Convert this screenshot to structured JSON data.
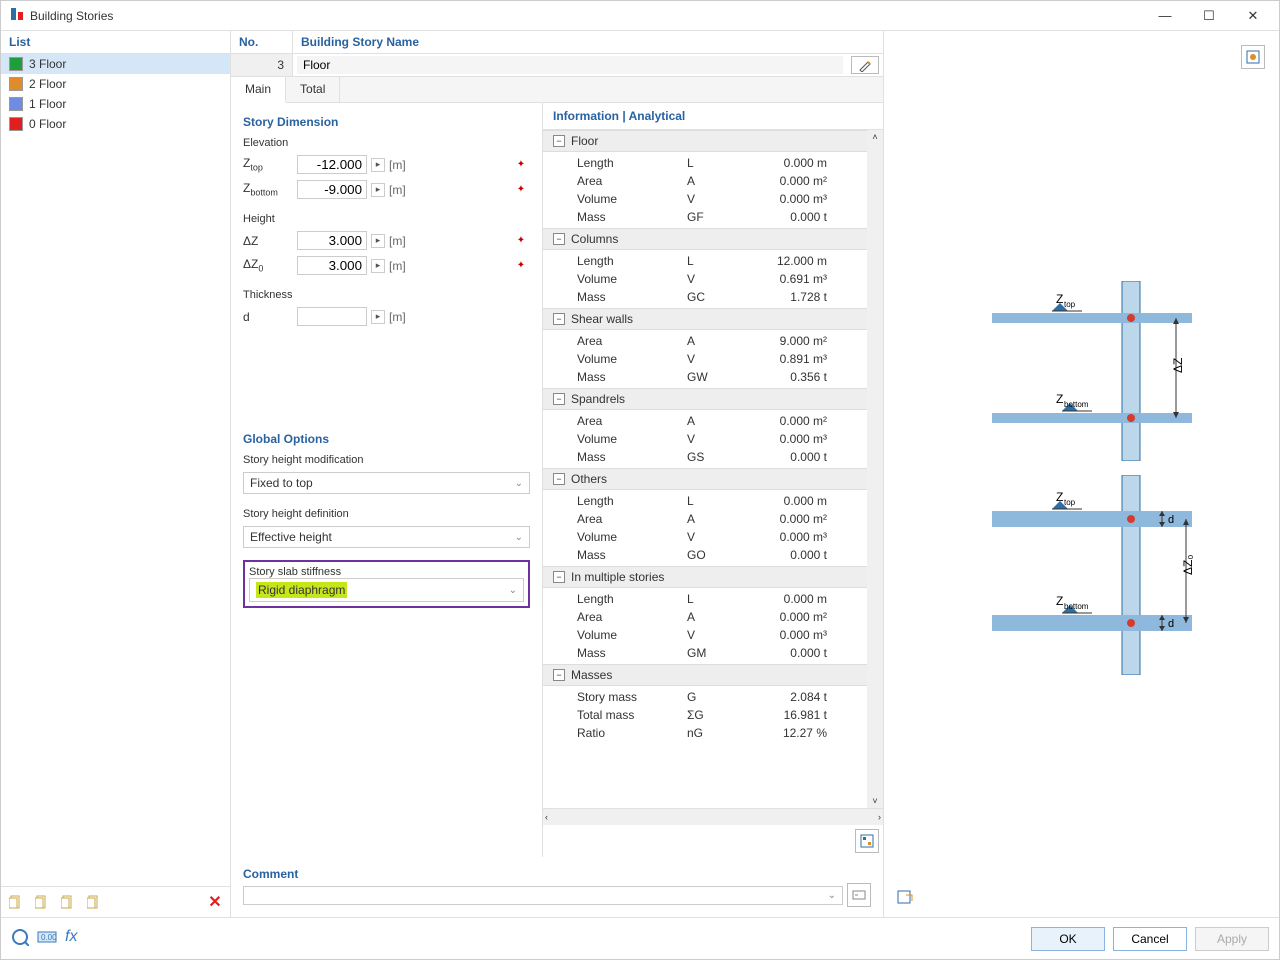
{
  "window": {
    "title": "Building Stories"
  },
  "sidebar": {
    "header": "List",
    "floors": [
      {
        "label": "3 Floor",
        "color": "#1f9e3c",
        "selected": true
      },
      {
        "label": "2 Floor",
        "color": "#e08b2c",
        "selected": false
      },
      {
        "label": "1 Floor",
        "color": "#6f8de0",
        "selected": false
      },
      {
        "label": "0 Floor",
        "color": "#e02020",
        "selected": false
      }
    ]
  },
  "header": {
    "no_label": "No.",
    "name_label": "Building Story Name",
    "no_value": "3",
    "name_value": "Floor"
  },
  "tabs": {
    "main": "Main",
    "total": "Total"
  },
  "story_dimension": {
    "title": "Story Dimension",
    "groups": {
      "elevation": {
        "label": "Elevation",
        "ztop": {
          "label": "Ztop",
          "value": "-12.000",
          "unit": "[m]"
        },
        "zbottom": {
          "label": "Zbottom",
          "value": "-9.000",
          "unit": "[m]"
        }
      },
      "height": {
        "label": "Height",
        "dz": {
          "label": "ΔZ",
          "value": "3.000",
          "unit": "[m]"
        },
        "dz0": {
          "label": "ΔZ0",
          "value": "3.000",
          "unit": "[m]"
        }
      },
      "thickness": {
        "label": "Thickness",
        "d": {
          "label": "d",
          "value": "",
          "unit": "[m]"
        }
      }
    }
  },
  "global_options": {
    "title": "Global Options",
    "height_mod_label": "Story height modification",
    "height_mod_value": "Fixed to top",
    "height_def_label": "Story height definition",
    "height_def_value": "Effective height",
    "slab_stiff_label": "Story slab stiffness",
    "slab_stiff_value": "Rigid diaphragm"
  },
  "info": {
    "title": "Information | Analytical",
    "groups": [
      {
        "name": "Floor",
        "rows": [
          {
            "nm": "Length",
            "sym": "L",
            "val": "0.000 m"
          },
          {
            "nm": "Area",
            "sym": "A",
            "val": "0.000 m²"
          },
          {
            "nm": "Volume",
            "sym": "V",
            "val": "0.000 m³"
          },
          {
            "nm": "Mass",
            "sym": "GF",
            "val": "0.000 t"
          }
        ]
      },
      {
        "name": "Columns",
        "rows": [
          {
            "nm": "Length",
            "sym": "L",
            "val": "12.000 m"
          },
          {
            "nm": "Volume",
            "sym": "V",
            "val": "0.691 m³"
          },
          {
            "nm": "Mass",
            "sym": "GC",
            "val": "1.728 t"
          }
        ]
      },
      {
        "name": "Shear walls",
        "rows": [
          {
            "nm": "Area",
            "sym": "A",
            "val": "9.000 m²"
          },
          {
            "nm": "Volume",
            "sym": "V",
            "val": "0.891 m³"
          },
          {
            "nm": "Mass",
            "sym": "GW",
            "val": "0.356 t"
          }
        ]
      },
      {
        "name": "Spandrels",
        "rows": [
          {
            "nm": "Area",
            "sym": "A",
            "val": "0.000 m²"
          },
          {
            "nm": "Volume",
            "sym": "V",
            "val": "0.000 m³"
          },
          {
            "nm": "Mass",
            "sym": "GS",
            "val": "0.000 t"
          }
        ]
      },
      {
        "name": "Others",
        "rows": [
          {
            "nm": "Length",
            "sym": "L",
            "val": "0.000 m"
          },
          {
            "nm": "Area",
            "sym": "A",
            "val": "0.000 m²"
          },
          {
            "nm": "Volume",
            "sym": "V",
            "val": "0.000 m³"
          },
          {
            "nm": "Mass",
            "sym": "GO",
            "val": "0.000 t"
          }
        ]
      },
      {
        "name": "In multiple stories",
        "rows": [
          {
            "nm": "Length",
            "sym": "L",
            "val": "0.000 m"
          },
          {
            "nm": "Area",
            "sym": "A",
            "val": "0.000 m²"
          },
          {
            "nm": "Volume",
            "sym": "V",
            "val": "0.000 m³"
          },
          {
            "nm": "Mass",
            "sym": "GM",
            "val": "0.000 t"
          }
        ]
      },
      {
        "name": "Masses",
        "rows": [
          {
            "nm": "Story mass",
            "sym": "G",
            "val": "2.084 t"
          },
          {
            "nm": "Total mass",
            "sym": "ΣG",
            "val": "16.981 t"
          },
          {
            "nm": "Ratio",
            "sym": "nG",
            "val": "12.27 %"
          }
        ]
      }
    ]
  },
  "comment": {
    "label": "Comment",
    "value": ""
  },
  "buttons": {
    "ok": "OK",
    "cancel": "Cancel",
    "apply": "Apply"
  },
  "diagram": {
    "hline_color": "#8fb9dc",
    "column_fill": "#bcd6ea",
    "column_border": "#2f6ea5",
    "node_color": "#d43c2e",
    "labels": {
      "ztop": "Ztop",
      "zbottom": "Zbottom",
      "dz": "ΔZ",
      "dz0": "ΔZ0",
      "d": "d"
    }
  }
}
